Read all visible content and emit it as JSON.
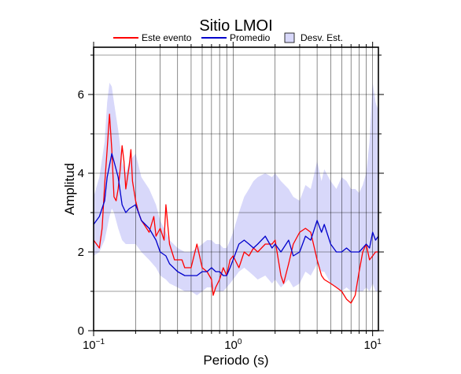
{
  "chart_data": {
    "type": "line",
    "title": "Sitio LMOI",
    "xlabel": "Periodo (s)",
    "ylabel": "Amplitud",
    "x_scale": "log",
    "xlim": [
      0.1,
      11
    ],
    "ylim": [
      0,
      7.2
    ],
    "x_ticks": [
      {
        "value": 0.1,
        "base": "10",
        "exp": "−1"
      },
      {
        "value": 1,
        "base": "10",
        "exp": "0"
      },
      {
        "value": 10,
        "base": "10",
        "exp": "1"
      }
    ],
    "y_ticks": [
      0,
      2,
      4,
      6
    ],
    "grid": true,
    "legend_position": "top",
    "legend": [
      {
        "label": "Este evento",
        "kind": "line",
        "color": "#ff0000"
      },
      {
        "label": "Promedio",
        "kind": "line",
        "color": "#0000cc"
      },
      {
        "label": "Desv. Est.",
        "kind": "box",
        "color": "#d8d8fa"
      }
    ],
    "series": [
      {
        "name": "Este evento",
        "color": "#ff0000",
        "x": [
          0.1,
          0.11,
          0.115,
          0.12,
          0.125,
          0.13,
          0.135,
          0.14,
          0.145,
          0.15,
          0.155,
          0.16,
          0.165,
          0.17,
          0.175,
          0.18,
          0.185,
          0.19,
          0.2,
          0.21,
          0.22,
          0.23,
          0.25,
          0.27,
          0.28,
          0.3,
          0.32,
          0.33,
          0.35,
          0.38,
          0.4,
          0.43,
          0.45,
          0.5,
          0.55,
          0.6,
          0.65,
          0.7,
          0.72,
          0.75,
          0.8,
          0.85,
          0.9,
          0.95,
          1.0,
          1.1,
          1.2,
          1.3,
          1.4,
          1.5,
          1.7,
          1.9,
          2.0,
          2.2,
          2.3,
          2.5,
          2.7,
          3.0,
          3.3,
          3.6,
          4.0,
          4.3,
          4.5,
          5.0,
          5.5,
          6.0,
          6.5,
          7.0,
          7.5,
          8.0,
          8.5,
          9.0,
          9.5,
          10.0,
          10.5,
          11.0
        ],
        "y": [
          2.3,
          2.1,
          2.6,
          3.7,
          4.6,
          5.5,
          4.6,
          3.4,
          3.3,
          3.6,
          4.1,
          4.7,
          4.3,
          3.6,
          3.9,
          4.2,
          4.6,
          3.8,
          3.3,
          3.0,
          2.8,
          2.7,
          2.5,
          2.9,
          2.4,
          2.6,
          2.3,
          3.2,
          2.2,
          1.8,
          1.8,
          1.8,
          1.6,
          1.6,
          2.2,
          1.6,
          1.5,
          1.3,
          0.9,
          1.1,
          1.3,
          1.6,
          1.4,
          1.8,
          1.9,
          1.6,
          2.0,
          1.9,
          2.1,
          2.0,
          2.2,
          2.2,
          2.3,
          1.4,
          1.2,
          1.7,
          2.2,
          2.5,
          2.6,
          2.5,
          1.8,
          1.4,
          1.3,
          1.2,
          1.1,
          1.0,
          0.8,
          0.7,
          0.9,
          1.5,
          2.0,
          2.2,
          1.8,
          1.9,
          2.0,
          2.0
        ]
      },
      {
        "name": "Promedio",
        "color": "#0000cc",
        "x": [
          0.1,
          0.11,
          0.12,
          0.125,
          0.13,
          0.135,
          0.14,
          0.15,
          0.16,
          0.17,
          0.18,
          0.2,
          0.22,
          0.25,
          0.28,
          0.3,
          0.33,
          0.35,
          0.4,
          0.45,
          0.5,
          0.55,
          0.6,
          0.65,
          0.7,
          0.75,
          0.8,
          0.85,
          0.9,
          0.95,
          1.0,
          1.1,
          1.2,
          1.3,
          1.4,
          1.5,
          1.7,
          1.9,
          2.0,
          2.2,
          2.5,
          2.7,
          3.0,
          3.3,
          3.6,
          4.0,
          4.3,
          4.5,
          5.0,
          5.5,
          6.0,
          6.5,
          7.0,
          7.5,
          8.0,
          8.5,
          9.0,
          9.5,
          10.0,
          10.5,
          11.0
        ],
        "y": [
          2.7,
          2.9,
          3.3,
          3.9,
          4.2,
          4.5,
          4.3,
          3.9,
          3.2,
          3.0,
          3.1,
          3.2,
          2.8,
          2.6,
          2.3,
          2.0,
          1.9,
          1.7,
          1.5,
          1.4,
          1.4,
          1.4,
          1.5,
          1.5,
          1.6,
          1.5,
          1.5,
          1.4,
          1.4,
          1.6,
          1.8,
          2.2,
          2.3,
          2.2,
          2.1,
          2.2,
          2.4,
          2.1,
          2.2,
          2.0,
          2.3,
          1.9,
          2.0,
          2.4,
          2.3,
          2.8,
          2.5,
          2.7,
          2.2,
          2.0,
          2.0,
          2.1,
          2.0,
          2.0,
          2.0,
          2.1,
          2.2,
          2.1,
          2.5,
          2.3,
          2.4
        ]
      }
    ],
    "band": {
      "name": "Desv. Est.",
      "color": "#d8d8fa",
      "x": [
        0.1,
        0.11,
        0.12,
        0.125,
        0.13,
        0.135,
        0.14,
        0.15,
        0.16,
        0.17,
        0.18,
        0.2,
        0.22,
        0.25,
        0.28,
        0.3,
        0.33,
        0.35,
        0.4,
        0.45,
        0.5,
        0.55,
        0.6,
        0.65,
        0.7,
        0.75,
        0.8,
        0.85,
        0.9,
        0.95,
        1.0,
        1.1,
        1.2,
        1.3,
        1.4,
        1.5,
        1.7,
        1.9,
        2.0,
        2.2,
        2.5,
        2.7,
        3.0,
        3.3,
        3.6,
        4.0,
        4.3,
        4.5,
        5.0,
        5.5,
        6.0,
        6.5,
        7.0,
        7.5,
        8.0,
        8.5,
        9.0,
        9.5,
        10.0,
        10.5,
        11.0
      ],
      "lower": [
        1.9,
        2.0,
        2.3,
        2.6,
        2.9,
        3.1,
        3.0,
        2.6,
        2.3,
        2.2,
        2.2,
        2.2,
        2.0,
        1.8,
        1.6,
        1.4,
        1.3,
        1.2,
        1.1,
        1.0,
        1.0,
        0.9,
        1.0,
        1.1,
        1.1,
        1.0,
        1.0,
        1.0,
        1.1,
        1.2,
        1.3,
        1.5,
        1.6,
        1.5,
        1.4,
        1.3,
        1.4,
        1.2,
        1.3,
        1.1,
        1.3,
        1.1,
        1.2,
        1.5,
        1.4,
        1.7,
        1.5,
        1.5,
        1.2,
        1.1,
        1.0,
        1.1,
        1.0,
        1.0,
        1.0,
        1.0,
        1.1,
        1.0,
        1.2,
        1.0,
        1.0
      ],
      "upper": [
        3.4,
        3.9,
        4.8,
        5.8,
        6.3,
        6.2,
        5.8,
        5.1,
        4.3,
        4.0,
        4.3,
        4.5,
        3.9,
        3.6,
        3.2,
        2.8,
        2.5,
        2.3,
        2.1,
        2.0,
        2.0,
        2.1,
        2.2,
        2.3,
        2.3,
        2.2,
        2.2,
        2.1,
        2.1,
        2.3,
        2.5,
        3.0,
        3.4,
        3.6,
        3.8,
        3.9,
        4.0,
        3.9,
        4.0,
        3.8,
        3.6,
        3.4,
        3.3,
        3.7,
        3.6,
        4.3,
        3.8,
        4.1,
        3.8,
        3.6,
        3.9,
        3.8,
        3.6,
        3.6,
        3.5,
        3.7,
        4.0,
        4.8,
        6.3,
        5.8,
        5.6
      ]
    }
  }
}
